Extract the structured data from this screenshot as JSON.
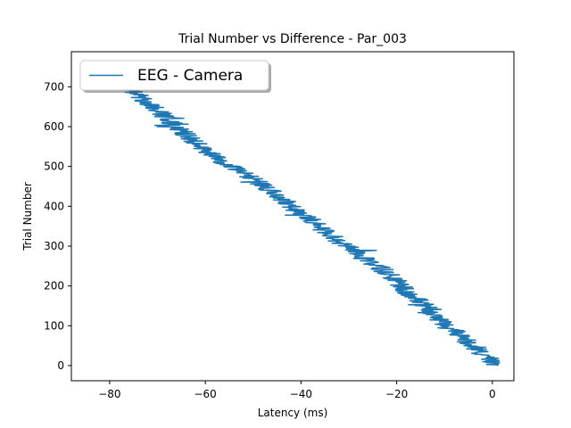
{
  "chart_data": {
    "type": "line",
    "title": "Trial Number vs Difference - Par_003",
    "xlabel": "Latency (ms)",
    "ylabel": "Trial Number",
    "xlim": [
      -88,
      4.5
    ],
    "ylim": [
      -38,
      788
    ],
    "xticks": [
      -80,
      -60,
      -40,
      -20,
      0
    ],
    "xtick_labels": [
      "−80",
      "−60",
      "−40",
      "−20",
      "0"
    ],
    "yticks": [
      0,
      100,
      200,
      300,
      400,
      500,
      600,
      700
    ],
    "ytick_labels": [
      "0",
      "100",
      "200",
      "300",
      "400",
      "500",
      "600",
      "700"
    ],
    "grid": false,
    "legend_position": "top-left",
    "series": [
      {
        "name": "EEG - Camera",
        "color": "#1f77b4",
        "trend": [
          [
            0.5,
            0
          ],
          [
            -1,
            20
          ],
          [
            -3,
            40
          ],
          [
            -5,
            60
          ],
          [
            -7,
            80
          ],
          [
            -10,
            100
          ],
          [
            -12,
            125
          ],
          [
            -14,
            150
          ],
          [
            -17,
            175
          ],
          [
            -19,
            200
          ],
          [
            -21,
            225
          ],
          [
            -24,
            250
          ],
          [
            -27,
            270
          ],
          [
            -29,
            290
          ],
          [
            -32,
            310
          ],
          [
            -34,
            330
          ],
          [
            -36,
            350
          ],
          [
            -38,
            370
          ],
          [
            -41,
            390
          ],
          [
            -43,
            410
          ],
          [
            -45,
            430
          ],
          [
            -48,
            450
          ],
          [
            -50,
            470
          ],
          [
            -53,
            490
          ],
          [
            -56,
            510
          ],
          [
            -59,
            530
          ],
          [
            -61,
            550
          ],
          [
            -63,
            570
          ],
          [
            -65,
            590
          ],
          [
            -67,
            610
          ],
          [
            -69,
            630
          ],
          [
            -71,
            650
          ],
          [
            -73,
            670
          ],
          [
            -75,
            690
          ],
          [
            -76,
            705
          ]
        ]
      }
    ]
  }
}
